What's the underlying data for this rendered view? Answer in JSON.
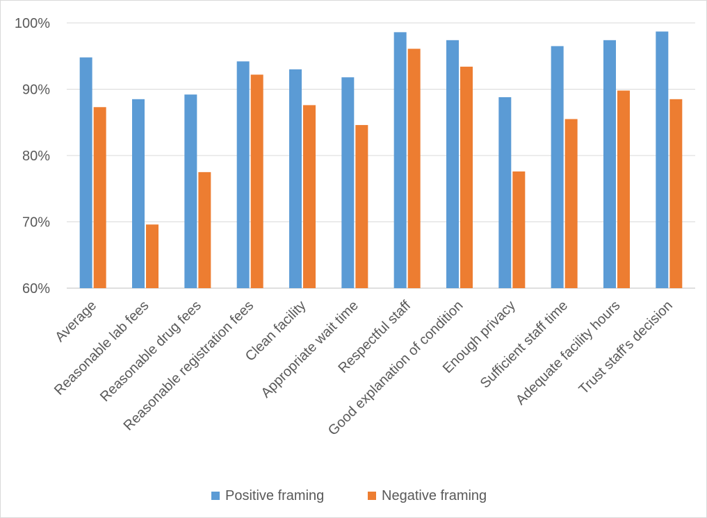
{
  "chart_data": {
    "type": "bar",
    "categories": [
      "Average",
      "Reasonable lab fees",
      "Reasonable drug fees",
      "Reasonable registration fees",
      "Clean facility",
      "Appropriate wait time",
      "Respectful staff",
      "Good explanation of condition",
      "Enough privacy",
      "Sufficient staff time",
      "Adequate facility hours",
      "Trust staff's decision"
    ],
    "series": [
      {
        "name": "Positive framing",
        "color": "#5B9BD5",
        "values": [
          94.8,
          88.5,
          89.2,
          94.2,
          93.0,
          91.8,
          98.6,
          97.4,
          88.8,
          96.5,
          97.4,
          98.7
        ]
      },
      {
        "name": "Negative framing",
        "color": "#ED7D31",
        "values": [
          87.3,
          69.6,
          77.5,
          92.2,
          87.6,
          84.6,
          96.1,
          93.4,
          77.6,
          85.5,
          89.8,
          88.5
        ]
      }
    ],
    "y_ticks": [
      "60%",
      "70%",
      "80%",
      "90%",
      "100%"
    ],
    "ylim": [
      60,
      100
    ],
    "grid": true,
    "legend_position": "bottom"
  }
}
